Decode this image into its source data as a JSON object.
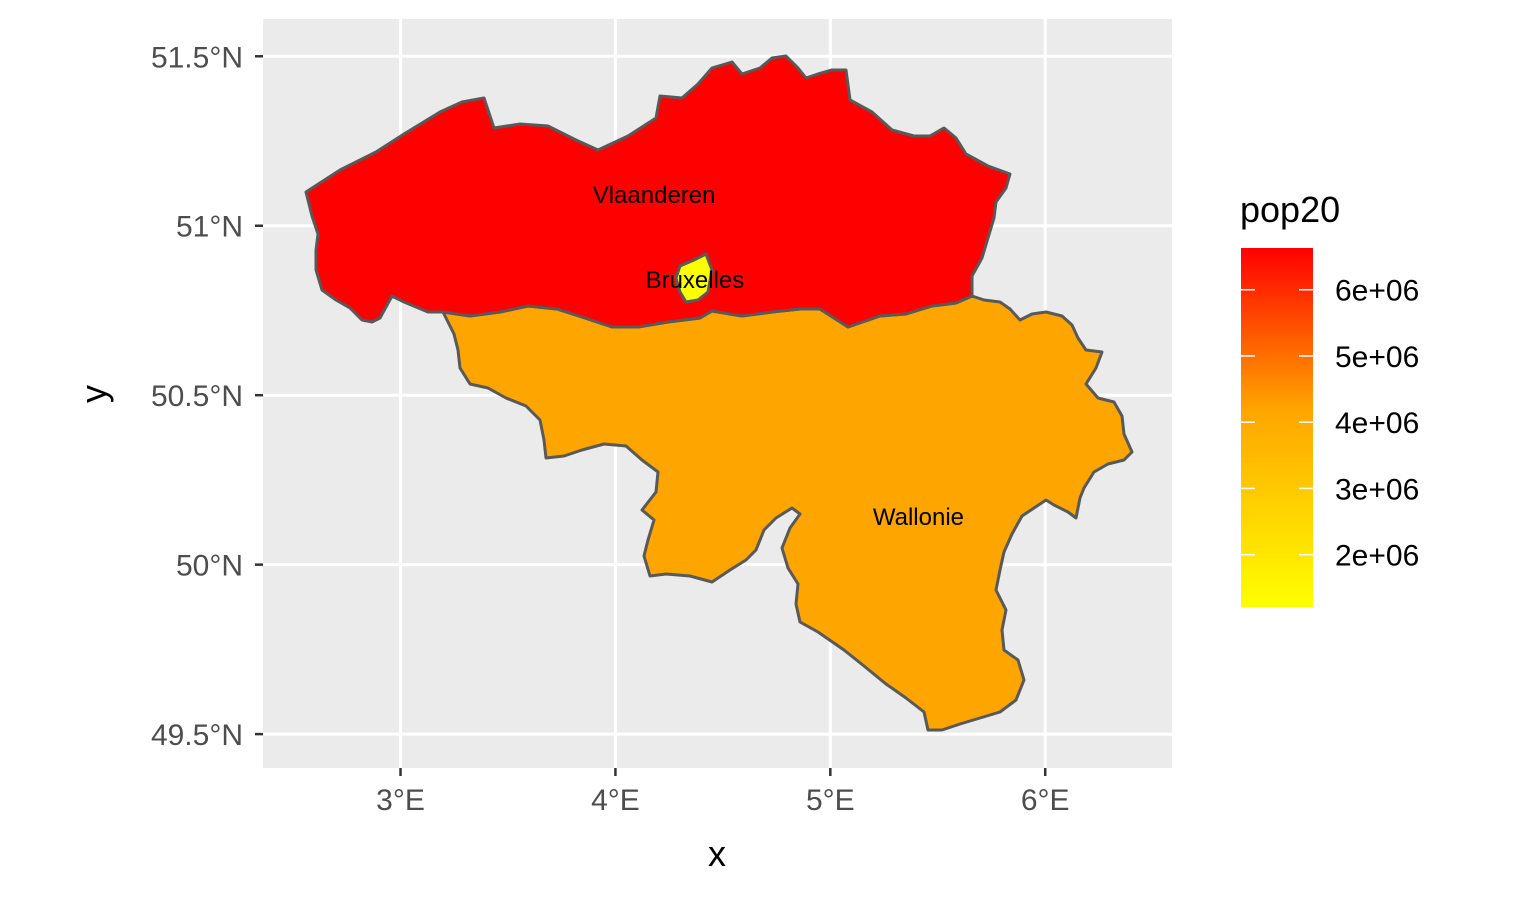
{
  "chart_data": {
    "type": "choropleth",
    "xlabel": "x",
    "ylabel": "y",
    "x_ticks": [
      {
        "value": 3,
        "label": "3°E"
      },
      {
        "value": 4,
        "label": "4°E"
      },
      {
        "value": 5,
        "label": "5°E"
      },
      {
        "value": 6,
        "label": "6°E"
      }
    ],
    "y_ticks": [
      {
        "value": 49.5,
        "label": "49.5°N"
      },
      {
        "value": 50,
        "label": "50°N"
      },
      {
        "value": 50.5,
        "label": "50.5°N"
      },
      {
        "value": 51,
        "label": "51°N"
      },
      {
        "value": 51.5,
        "label": "51.5°N"
      }
    ],
    "xlim": [
      2.36,
      6.59
    ],
    "ylim": [
      49.4,
      51.61
    ],
    "regions": [
      {
        "name": "Vlaanderen",
        "pop20": 6630000,
        "color": "#ff0000",
        "label_lon": 4.18,
        "label_lat": 51.09
      },
      {
        "name": "Wallonie",
        "pop20": 3640000,
        "color": "#ffa500",
        "label_lon": 5.41,
        "label_lat": 50.14
      },
      {
        "name": "Bruxelles",
        "pop20": 1210000,
        "color": "#ffff00",
        "label_lon": 4.37,
        "label_lat": 50.84
      }
    ],
    "legend": {
      "title": "pop20",
      "placement": "right",
      "low_color": "#ffff00",
      "high_color": "#ff0000",
      "min": 1210000,
      "max": 6630000,
      "breaks": [
        {
          "value": 2000000,
          "label": "2e+06"
        },
        {
          "value": 3000000,
          "label": "3e+06"
        },
        {
          "value": 4000000,
          "label": "4e+06"
        },
        {
          "value": 5000000,
          "label": "5e+06"
        },
        {
          "value": 6000000,
          "label": "6e+06"
        }
      ]
    },
    "colors": {
      "panel_background": "#ebebeb",
      "grid": "#ffffff",
      "border": "#595959"
    }
  }
}
